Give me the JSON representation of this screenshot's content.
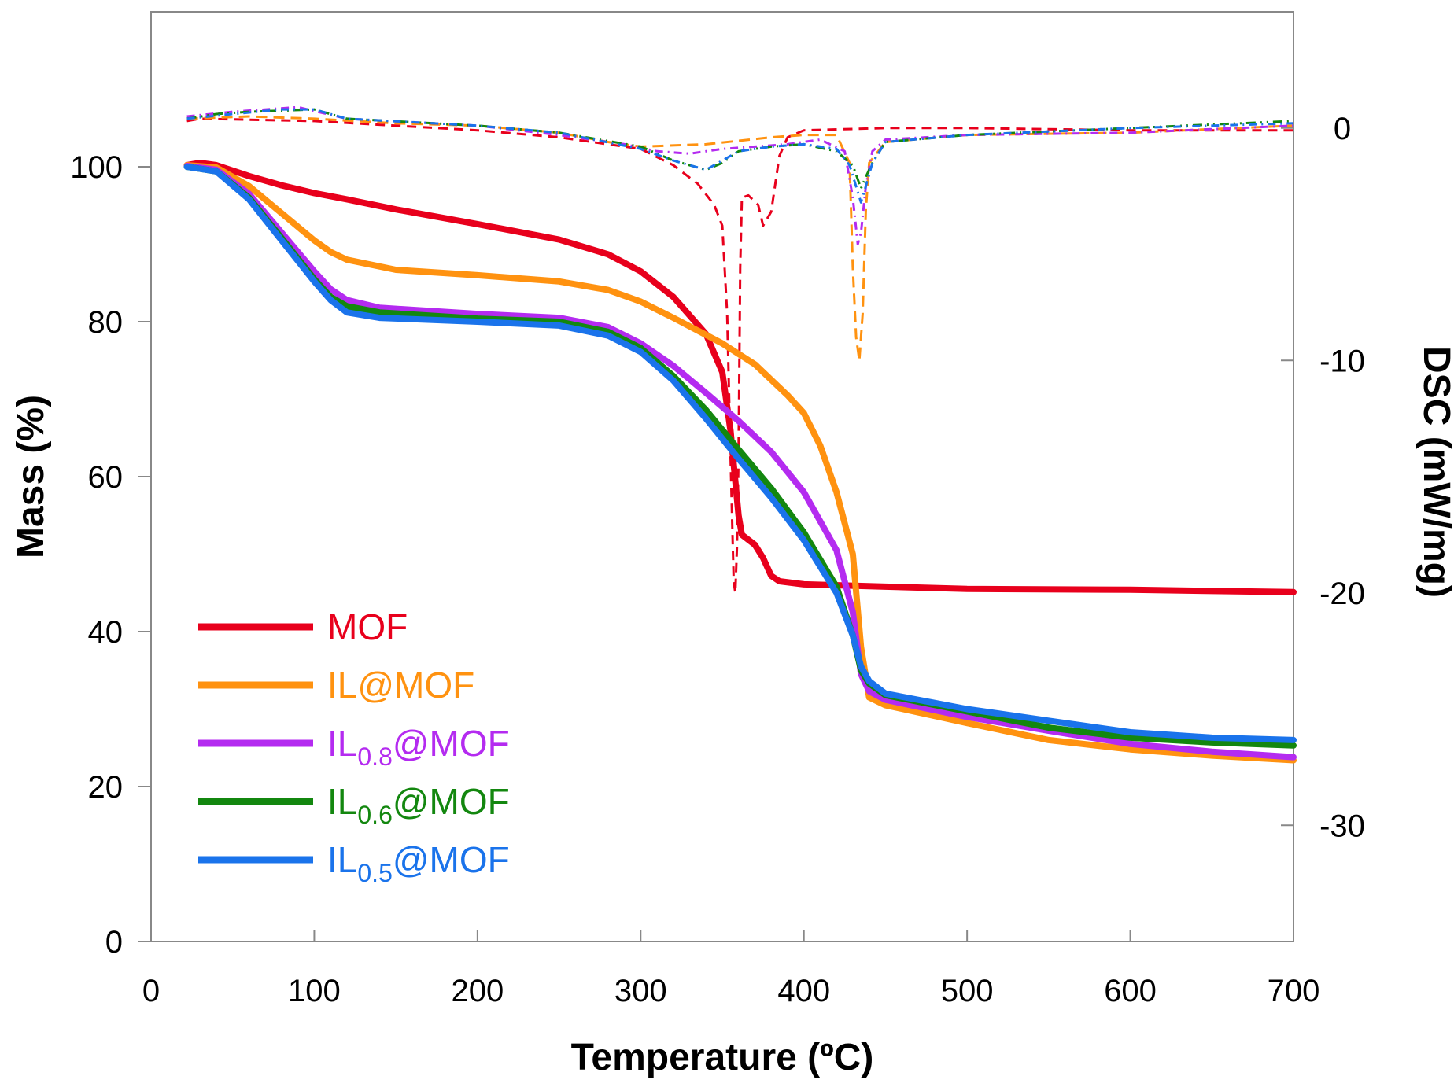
{
  "chart_data": {
    "type": "line",
    "xlabel": "Temperature (ºC)",
    "ylabel": "Mass (%)",
    "y2label": "DSC (mW/mg)",
    "xlim": [
      0,
      700
    ],
    "ylim": [
      0,
      120
    ],
    "y2lim": [
      -35,
      5
    ],
    "xticks": [
      0,
      100,
      200,
      300,
      400,
      500,
      600,
      700
    ],
    "yticks": [
      0,
      20,
      40,
      60,
      80,
      100
    ],
    "y2ticks": [
      -30,
      -20,
      -10,
      0
    ],
    "y2tick_labels": [
      "-30",
      "-20",
      "-10",
      "0"
    ],
    "grid": false,
    "legend_position": "lower-left",
    "series": [
      {
        "name": "MOF",
        "sub": "",
        "color": "#e8001c",
        "mass": [
          [
            22,
            100.2
          ],
          [
            30,
            100.5
          ],
          [
            40,
            100.2
          ],
          [
            60,
            98.8
          ],
          [
            80,
            97.6
          ],
          [
            100,
            96.6
          ],
          [
            120,
            95.8
          ],
          [
            150,
            94.5
          ],
          [
            200,
            92.6
          ],
          [
            250,
            90.6
          ],
          [
            280,
            88.7
          ],
          [
            300,
            86.5
          ],
          [
            320,
            83.2
          ],
          [
            340,
            78.4
          ],
          [
            350,
            73.5
          ],
          [
            355,
            66
          ],
          [
            360,
            55
          ],
          [
            362,
            52.5
          ],
          [
            370,
            51.2
          ],
          [
            375,
            49.5
          ],
          [
            380,
            47.2
          ],
          [
            385,
            46.5
          ],
          [
            400,
            46.1
          ],
          [
            450,
            45.8
          ],
          [
            500,
            45.5
          ],
          [
            600,
            45.4
          ],
          [
            700,
            45.1
          ]
        ],
        "dsc": [
          [
            22,
            0.3
          ],
          [
            30,
            0.4
          ],
          [
            100,
            0.3
          ],
          [
            150,
            0.1
          ],
          [
            200,
            -0.1
          ],
          [
            250,
            -0.4
          ],
          [
            300,
            -0.9
          ],
          [
            320,
            -1.6
          ],
          [
            335,
            -2.4
          ],
          [
            345,
            -3.3
          ],
          [
            350,
            -4.2
          ],
          [
            353,
            -8
          ],
          [
            355,
            -14
          ],
          [
            357,
            -19.5
          ],
          [
            358,
            -20
          ],
          [
            359,
            -18
          ],
          [
            360,
            -14
          ],
          [
            361,
            -6
          ],
          [
            362,
            -3
          ],
          [
            366,
            -2.9
          ],
          [
            372,
            -3.3
          ],
          [
            375,
            -4.2
          ],
          [
            380,
            -3.6
          ],
          [
            385,
            -1.2
          ],
          [
            390,
            -0.4
          ],
          [
            400,
            -0.1
          ],
          [
            450,
            0
          ],
          [
            500,
            0
          ],
          [
            600,
            -0.1
          ],
          [
            700,
            -0.1
          ]
        ]
      },
      {
        "name": "IL@MOF",
        "sub": "",
        "color": "#ff9210",
        "mass": [
          [
            22,
            100.2
          ],
          [
            40,
            99.9
          ],
          [
            60,
            97.5
          ],
          [
            80,
            94
          ],
          [
            100,
            90.5
          ],
          [
            110,
            89
          ],
          [
            120,
            88
          ],
          [
            150,
            86.7
          ],
          [
            200,
            86
          ],
          [
            250,
            85.2
          ],
          [
            280,
            84.1
          ],
          [
            300,
            82.6
          ],
          [
            320,
            80.5
          ],
          [
            350,
            77.2
          ],
          [
            370,
            74.5
          ],
          [
            390,
            70.5
          ],
          [
            400,
            68.2
          ],
          [
            410,
            64
          ],
          [
            420,
            58
          ],
          [
            430,
            50
          ],
          [
            435,
            38
          ],
          [
            440,
            31.5
          ],
          [
            450,
            30.5
          ],
          [
            500,
            28.2
          ],
          [
            550,
            26
          ],
          [
            600,
            24.8
          ],
          [
            650,
            24
          ],
          [
            700,
            23.4
          ]
        ],
        "dsc": [
          [
            22,
            0.4
          ],
          [
            60,
            0.5
          ],
          [
            100,
            0.4
          ],
          [
            150,
            0.2
          ],
          [
            200,
            0.1
          ],
          [
            250,
            -0.2
          ],
          [
            280,
            -0.6
          ],
          [
            300,
            -0.8
          ],
          [
            340,
            -0.7
          ],
          [
            380,
            -0.4
          ],
          [
            400,
            -0.3
          ],
          [
            420,
            -0.3
          ],
          [
            428,
            -1.5
          ],
          [
            430,
            -6
          ],
          [
            432,
            -9
          ],
          [
            434,
            -10
          ],
          [
            436,
            -8
          ],
          [
            438,
            -3.5
          ],
          [
            440,
            -1.5
          ],
          [
            450,
            -0.6
          ],
          [
            500,
            -0.3
          ],
          [
            600,
            -0.2
          ],
          [
            700,
            0.1
          ]
        ]
      },
      {
        "name": "IL",
        "sub": "0.8",
        "suffix": "@MOF",
        "color": "#b42bf0",
        "mass": [
          [
            22,
            100.1
          ],
          [
            40,
            99.6
          ],
          [
            60,
            96.5
          ],
          [
            80,
            91.5
          ],
          [
            100,
            86.5
          ],
          [
            110,
            84.2
          ],
          [
            120,
            82.8
          ],
          [
            140,
            81.8
          ],
          [
            200,
            81
          ],
          [
            250,
            80.5
          ],
          [
            280,
            79.3
          ],
          [
            300,
            77.2
          ],
          [
            320,
            74.3
          ],
          [
            340,
            70.8
          ],
          [
            360,
            67.2
          ],
          [
            380,
            63.2
          ],
          [
            400,
            58
          ],
          [
            420,
            50.5
          ],
          [
            430,
            42.5
          ],
          [
            435,
            34.5
          ],
          [
            440,
            32.3
          ],
          [
            450,
            31.2
          ],
          [
            500,
            29
          ],
          [
            550,
            27.2
          ],
          [
            600,
            25.5
          ],
          [
            650,
            24.5
          ],
          [
            700,
            23.8
          ]
        ],
        "dsc": [
          [
            22,
            0.5
          ],
          [
            50,
            0.7
          ],
          [
            90,
            0.9
          ],
          [
            120,
            0.4
          ],
          [
            200,
            0.1
          ],
          [
            250,
            -0.3
          ],
          [
            290,
            -0.7
          ],
          [
            310,
            -1
          ],
          [
            330,
            -1.1
          ],
          [
            350,
            -0.9
          ],
          [
            370,
            -0.8
          ],
          [
            390,
            -0.7
          ],
          [
            410,
            -0.5
          ],
          [
            425,
            -1
          ],
          [
            430,
            -3
          ],
          [
            433,
            -5
          ],
          [
            435,
            -4.5
          ],
          [
            438,
            -2.5
          ],
          [
            442,
            -1
          ],
          [
            450,
            -0.5
          ],
          [
            500,
            -0.3
          ],
          [
            600,
            -0.2
          ],
          [
            700,
            0.1
          ]
        ]
      },
      {
        "name": "IL",
        "sub": "0.6",
        "suffix": "@MOF",
        "color": "#13870f",
        "mass": [
          [
            22,
            100
          ],
          [
            40,
            99.4
          ],
          [
            60,
            96
          ],
          [
            80,
            90.8
          ],
          [
            100,
            85.5
          ],
          [
            110,
            83.2
          ],
          [
            120,
            82
          ],
          [
            140,
            81.2
          ],
          [
            200,
            80.4
          ],
          [
            250,
            80
          ],
          [
            280,
            78.7
          ],
          [
            300,
            76.6
          ],
          [
            320,
            73
          ],
          [
            340,
            68.6
          ],
          [
            360,
            63.5
          ],
          [
            380,
            58.5
          ],
          [
            400,
            52.8
          ],
          [
            420,
            45.8
          ],
          [
            430,
            39.5
          ],
          [
            435,
            35
          ],
          [
            440,
            33.3
          ],
          [
            450,
            31.8
          ],
          [
            500,
            29.7
          ],
          [
            550,
            27.6
          ],
          [
            600,
            26.3
          ],
          [
            650,
            25.7
          ],
          [
            700,
            25.3
          ]
        ],
        "dsc": [
          [
            22,
            0.4
          ],
          [
            40,
            0.6
          ],
          [
            60,
            0.7
          ],
          [
            100,
            0.8
          ],
          [
            120,
            0.4
          ],
          [
            200,
            0.1
          ],
          [
            250,
            -0.2
          ],
          [
            300,
            -0.8
          ],
          [
            320,
            -1.4
          ],
          [
            340,
            -1.8
          ],
          [
            350,
            -1.5
          ],
          [
            360,
            -1
          ],
          [
            380,
            -0.8
          ],
          [
            400,
            -0.7
          ],
          [
            420,
            -1
          ],
          [
            430,
            -1.6
          ],
          [
            435,
            -2.6
          ],
          [
            438,
            -2.1
          ],
          [
            442,
            -1.5
          ],
          [
            450,
            -0.6
          ],
          [
            500,
            -0.3
          ],
          [
            600,
            0
          ],
          [
            700,
            0.3
          ]
        ]
      },
      {
        "name": "IL",
        "sub": "0.5",
        "suffix": "@MOF",
        "color": "#1a73eb",
        "mass": [
          [
            22,
            100
          ],
          [
            40,
            99.4
          ],
          [
            60,
            95.8
          ],
          [
            80,
            90.5
          ],
          [
            100,
            85.2
          ],
          [
            110,
            82.8
          ],
          [
            120,
            81.2
          ],
          [
            140,
            80.5
          ],
          [
            200,
            80
          ],
          [
            250,
            79.5
          ],
          [
            280,
            78.2
          ],
          [
            300,
            76.1
          ],
          [
            320,
            72.4
          ],
          [
            340,
            67.5
          ],
          [
            360,
            62.3
          ],
          [
            380,
            57.3
          ],
          [
            400,
            51.8
          ],
          [
            420,
            45
          ],
          [
            430,
            39.5
          ],
          [
            435,
            35.5
          ],
          [
            440,
            33.6
          ],
          [
            450,
            32
          ],
          [
            500,
            30
          ],
          [
            550,
            28.5
          ],
          [
            600,
            27
          ],
          [
            650,
            26.3
          ],
          [
            700,
            26
          ]
        ],
        "dsc": [
          [
            22,
            0.4
          ],
          [
            50,
            0.6
          ],
          [
            80,
            0.8
          ],
          [
            100,
            0.8
          ],
          [
            120,
            0.4
          ],
          [
            200,
            0.1
          ],
          [
            250,
            -0.2
          ],
          [
            300,
            -0.9
          ],
          [
            320,
            -1.4
          ],
          [
            340,
            -1.8
          ],
          [
            350,
            -1.4
          ],
          [
            360,
            -1
          ],
          [
            380,
            -0.8
          ],
          [
            400,
            -0.7
          ],
          [
            420,
            -0.9
          ],
          [
            428,
            -1.6
          ],
          [
            435,
            -3.2
          ],
          [
            438,
            -2.5
          ],
          [
            442,
            -1.5
          ],
          [
            450,
            -0.6
          ],
          [
            500,
            -0.3
          ],
          [
            600,
            0
          ],
          [
            700,
            0.2
          ]
        ]
      }
    ]
  }
}
